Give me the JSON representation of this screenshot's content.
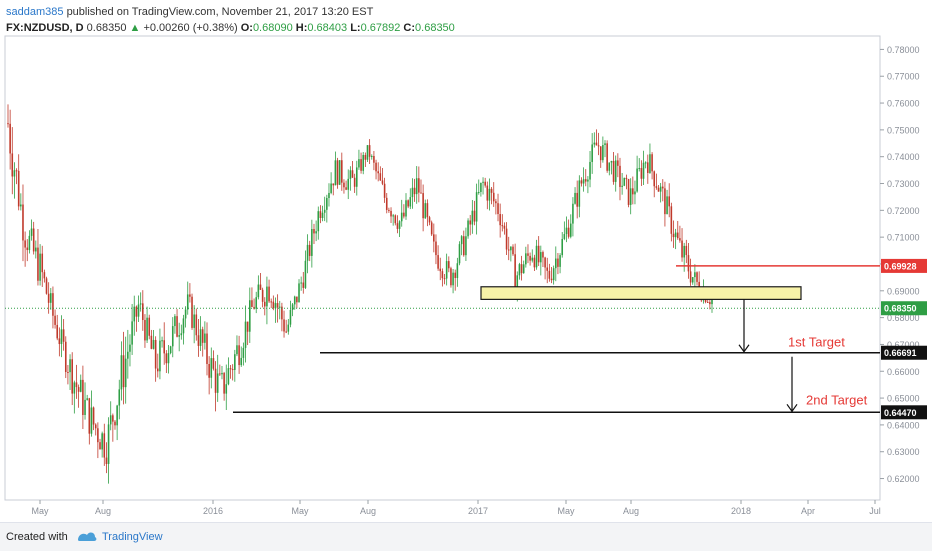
{
  "header": {
    "author": "saddam385",
    "published": "published on TradingView.com, November 21, 2017 13:20 EST",
    "symbol": "FX:NZDUSD, D",
    "last": "0.68350",
    "change_icon": "triangle-up-icon",
    "change": "+0.00260 (+0.38%)",
    "open_label": "O:",
    "open": "0.68090",
    "high_label": "H:",
    "high": "0.68403",
    "low_label": "L:",
    "low": "0.67892",
    "close_label": "C:",
    "close": "0.68350"
  },
  "footer": {
    "created_with": "Created with",
    "brand": "TradingView",
    "logo_icon": "tradingview-logo-icon"
  },
  "colors": {
    "up": "#2e9e44",
    "down": "#c0392b",
    "resistance": "#e53935",
    "zone_fill": "#f7f2a8",
    "zone_border": "#1a1a1a",
    "current_price": "#2e9e44",
    "target_text": "#e53935"
  },
  "chart_data": {
    "type": "candlestick",
    "symbol": "FX:NZDUSD",
    "interval": "D",
    "ylim": [
      0.612,
      0.785
    ],
    "y_ticks": [
      "0.78000",
      "0.77000",
      "0.76000",
      "0.75000",
      "0.74000",
      "0.73000",
      "0.72000",
      "0.71000",
      "0.70000",
      "0.69000",
      "0.68000",
      "0.67000",
      "0.66000",
      "0.65000",
      "0.64000",
      "0.63000",
      "0.62000"
    ],
    "x_ticks": [
      "May",
      "Aug",
      "2016",
      "May",
      "Aug",
      "2017",
      "May",
      "Aug",
      "2018",
      "Apr",
      "Jul"
    ],
    "price_path_approx": [
      [
        0.74,
        0.765
      ],
      [
        0.705,
        0.72
      ],
      [
        0.69,
        0.705
      ],
      [
        0.67,
        0.68
      ],
      [
        0.65,
        0.665
      ],
      [
        0.635,
        0.65
      ],
      [
        0.625,
        0.64
      ],
      [
        0.65,
        0.67
      ],
      [
        0.68,
        0.69
      ],
      [
        0.655,
        0.67
      ],
      [
        0.665,
        0.68
      ],
      [
        0.68,
        0.69
      ],
      [
        0.66,
        0.675
      ],
      [
        0.645,
        0.66
      ],
      [
        0.66,
        0.675
      ],
      [
        0.68,
        0.69
      ],
      [
        0.685,
        0.7
      ],
      [
        0.67,
        0.68
      ],
      [
        0.69,
        0.7
      ],
      [
        0.715,
        0.725
      ],
      [
        0.73,
        0.74
      ],
      [
        0.725,
        0.735
      ],
      [
        0.74,
        0.745
      ],
      [
        0.72,
        0.73
      ],
      [
        0.71,
        0.72
      ],
      [
        0.725,
        0.735
      ],
      [
        0.7,
        0.71
      ],
      [
        0.69,
        0.7
      ],
      [
        0.705,
        0.715
      ],
      [
        0.725,
        0.735
      ],
      [
        0.715,
        0.725
      ],
      [
        0.69,
        0.7
      ],
      [
        0.7,
        0.71
      ],
      [
        0.69,
        0.7
      ],
      [
        0.705,
        0.715
      ],
      [
        0.725,
        0.735
      ],
      [
        0.74,
        0.75
      ],
      [
        0.73,
        0.74
      ],
      [
        0.72,
        0.73
      ],
      [
        0.735,
        0.745
      ],
      [
        0.72,
        0.73
      ],
      [
        0.7,
        0.712
      ],
      [
        0.688,
        0.698
      ],
      [
        0.683,
        0.69
      ]
    ],
    "annotations": {
      "resistance": {
        "value": 0.69928,
        "label": "0.69928"
      },
      "support_zone": {
        "low": 0.6868,
        "high": 0.6915
      },
      "current_price": {
        "value": 0.6835,
        "label": "0.68350"
      },
      "targets": [
        {
          "name": "1st Target",
          "value": 0.66691,
          "label": "0.66691"
        },
        {
          "name": "2nd Target",
          "value": 0.6447,
          "label": "0.64470"
        }
      ]
    }
  }
}
